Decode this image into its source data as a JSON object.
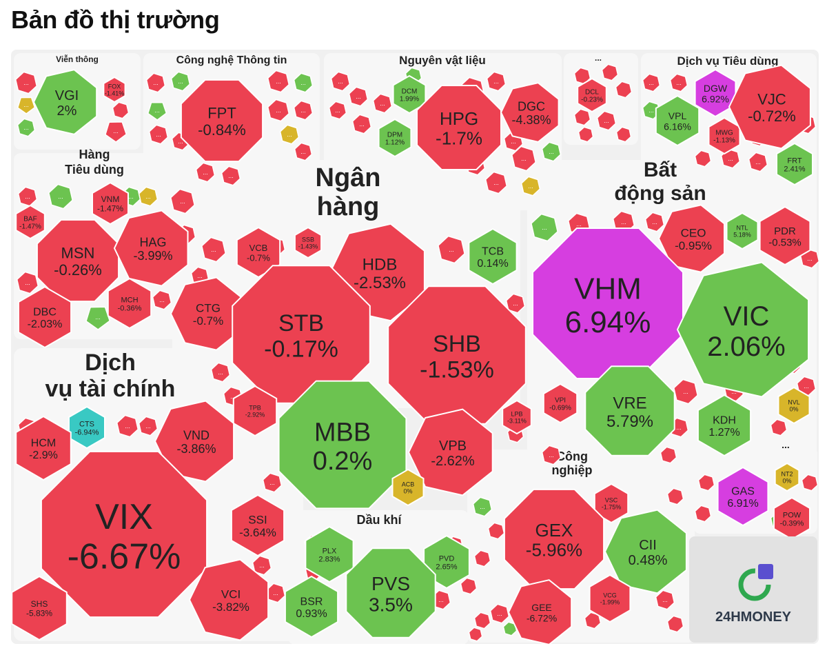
{
  "header": {
    "title": "Bản đồ thị trường"
  },
  "brand": {
    "name": "24HMONEY"
  },
  "colors": {
    "up": "#6cc350",
    "down": "#ec4151",
    "flat": "#d8b52a",
    "ceiling": "#d63ee0",
    "floor": "#39c9c3",
    "border_up": "#4f9a38",
    "border_down": "#c42c3b",
    "panel_bg": "#f0f0f0"
  },
  "chart_data": {
    "type": "treemap",
    "title": "Bản đồ thị trường",
    "unit": "%",
    "sectors": [
      {
        "name": "Viễn thông",
        "stocks": [
          {
            "ticker": "VGI",
            "change": 2
          },
          {
            "ticker": "FOX",
            "change": -1.41
          }
        ]
      },
      {
        "name": "Công nghệ Thông tin",
        "stocks": [
          {
            "ticker": "FPT",
            "change": -0.84
          }
        ]
      },
      {
        "name": "Nguyên vật liệu",
        "stocks": [
          {
            "ticker": "DCM",
            "change": 1.99
          },
          {
            "ticker": "DPM",
            "change": 1.12
          },
          {
            "ticker": "HPG",
            "change": -1.7
          },
          {
            "ticker": "DGC",
            "change": -4.38
          }
        ]
      },
      {
        "name": "...",
        "stocks": [
          {
            "ticker": "DCL",
            "change": -0.23
          }
        ]
      },
      {
        "name": "Dịch vụ Tiêu dùng",
        "stocks": [
          {
            "ticker": "DGW",
            "change": 6.92
          },
          {
            "ticker": "VPL",
            "change": 6.16
          },
          {
            "ticker": "MWG",
            "change": -1.13
          },
          {
            "ticker": "VJC",
            "change": -0.72
          },
          {
            "ticker": "FRT",
            "change": 2.41
          }
        ]
      },
      {
        "name": "Hàng Tiêu dùng",
        "stocks": [
          {
            "ticker": "VNM",
            "change": -1.47
          },
          {
            "ticker": "BAF",
            "change": -1.47
          },
          {
            "ticker": "MSN",
            "change": -0.26
          },
          {
            "ticker": "HAG",
            "change": -3.99
          },
          {
            "ticker": "DBC",
            "change": -2.03
          },
          {
            "ticker": "MCH",
            "change": -0.36
          }
        ]
      },
      {
        "name": "Ngân hàng",
        "stocks": [
          {
            "ticker": "VCB",
            "change": -0.7
          },
          {
            "ticker": "SSB",
            "change": -1.43
          },
          {
            "ticker": "HDB",
            "change": -2.53
          },
          {
            "ticker": "TCB",
            "change": 0.14
          },
          {
            "ticker": "CTG",
            "change": -0.7
          },
          {
            "ticker": "STB",
            "change": -0.17
          },
          {
            "ticker": "SHB",
            "change": -1.53
          },
          {
            "ticker": "TPB",
            "change": -2.92
          },
          {
            "ticker": "MBB",
            "change": 0.2
          },
          {
            "ticker": "VPB",
            "change": -2.62
          },
          {
            "ticker": "LPB",
            "change": -3.11
          },
          {
            "ticker": "ACB",
            "change": 0
          }
        ]
      },
      {
        "name": "Bất động sản",
        "stocks": [
          {
            "ticker": "CEO",
            "change": -0.95
          },
          {
            "ticker": "NTL",
            "change": 5.18
          },
          {
            "ticker": "PDR",
            "change": -0.53
          },
          {
            "ticker": "VHM",
            "change": 6.94
          },
          {
            "ticker": "VIC",
            "change": 2.06
          },
          {
            "ticker": "VPI",
            "change": -0.69
          },
          {
            "ticker": "VRE",
            "change": 5.79
          },
          {
            "ticker": "KDH",
            "change": 1.27
          },
          {
            "ticker": "NVL",
            "change": 0
          }
        ]
      },
      {
        "name": "Dịch vụ tài chính",
        "stocks": [
          {
            "ticker": "CTS",
            "change": -6.94
          },
          {
            "ticker": "HCM",
            "change": -2.9
          },
          {
            "ticker": "VND",
            "change": -3.86
          },
          {
            "ticker": "VIX",
            "change": -6.67
          },
          {
            "ticker": "SSI",
            "change": -3.64
          },
          {
            "ticker": "VCI",
            "change": -3.82
          },
          {
            "ticker": "SHS",
            "change": -5.83
          }
        ]
      },
      {
        "name": "Dầu khí",
        "stocks": [
          {
            "ticker": "PLX",
            "change": 2.83
          },
          {
            "ticker": "PVD",
            "change": 2.65
          },
          {
            "ticker": "PVS",
            "change": 3.5
          },
          {
            "ticker": "BSR",
            "change": 0.93
          }
        ]
      },
      {
        "name": "Công nghiệp",
        "stocks": [
          {
            "ticker": "VSC",
            "change": -1.75
          },
          {
            "ticker": "GEX",
            "change": -5.96
          },
          {
            "ticker": "CII",
            "change": 0.48
          },
          {
            "ticker": "VCG",
            "change": -1.99
          },
          {
            "ticker": "GEE",
            "change": -6.72
          }
        ]
      },
      {
        "name": "...",
        "stocks": [
          {
            "ticker": "GAS",
            "change": 6.91
          },
          {
            "ticker": "NT2",
            "change": 0
          },
          {
            "ticker": "POW",
            "change": -0.39
          }
        ]
      }
    ],
    "tile_texts": {
      "VGI": [
        "VGI",
        "2%"
      ],
      "FOX": [
        "FOX",
        "-1.41%"
      ],
      "FPT": [
        "FPT",
        "-0.84%"
      ],
      "DCM": [
        "DCM",
        "1.99%"
      ],
      "DPM": [
        "DPM",
        "1.12%"
      ],
      "HPG": [
        "HPG",
        "-1.7%"
      ],
      "DGC": [
        "DGC",
        "-4.38%"
      ],
      "DCL": [
        "DCL",
        "-0.23%"
      ],
      "DGW": [
        "DGW",
        "6.92%"
      ],
      "VPL": [
        "VPL",
        "6.16%"
      ],
      "MWG": [
        "MWG",
        "-1.13%"
      ],
      "VJC": [
        "VJC",
        "-0.72%"
      ],
      "FRT": [
        "FRT",
        "2.41%"
      ],
      "VNM": [
        "VNM",
        "-1.47%"
      ],
      "BAF": [
        "BAF",
        "-1.47%"
      ],
      "MSN": [
        "MSN",
        "-0.26%"
      ],
      "HAG": [
        "HAG",
        "-3.99%"
      ],
      "DBC": [
        "DBC",
        "-2.03%"
      ],
      "MCH": [
        "MCH",
        "-0.36%"
      ],
      "VCB": [
        "VCB",
        "-0.7%"
      ],
      "SSB": [
        "SSB",
        "-1.43%"
      ],
      "HDB": [
        "HDB",
        "-2.53%"
      ],
      "TCB": [
        "TCB",
        "0.14%"
      ],
      "CTG": [
        "CTG",
        "-0.7%"
      ],
      "STB": [
        "STB",
        "-0.17%"
      ],
      "SHB": [
        "SHB",
        "-1.53%"
      ],
      "TPB": [
        "TPB",
        "-2.92%"
      ],
      "MBB": [
        "MBB",
        "0.2%"
      ],
      "VPB": [
        "VPB",
        "-2.62%"
      ],
      "LPB": [
        "LPB",
        "-3.11%"
      ],
      "ACB": [
        "ACB",
        "0%"
      ],
      "CEO": [
        "CEO",
        "-0.95%"
      ],
      "NTL": [
        "NTL",
        "5.18%"
      ],
      "PDR": [
        "PDR",
        "-0.53%"
      ],
      "VHM": [
        "VHM",
        "6.94%"
      ],
      "VIC": [
        "VIC",
        "2.06%"
      ],
      "VPI": [
        "VPI",
        "-0.69%"
      ],
      "VRE": [
        "VRE",
        "5.79%"
      ],
      "KDH": [
        "KDH",
        "1.27%"
      ],
      "NVL": [
        "NVL",
        "0%"
      ],
      "CTS": [
        "CTS",
        "-6.94%"
      ],
      "HCM": [
        "HCM",
        "-2.9%"
      ],
      "VND": [
        "VND",
        "-3.86%"
      ],
      "VIX": [
        "VIX",
        "-6.67%"
      ],
      "SSI": [
        "SSI",
        "-3.64%"
      ],
      "VCI": [
        "VCI",
        "-3.82%"
      ],
      "SHS": [
        "SHS",
        "-5.83%"
      ],
      "PLX": [
        "PLX",
        "2.83%"
      ],
      "PVD": [
        "PVD",
        "2.65%"
      ],
      "PVS": [
        "PVS",
        "3.5%"
      ],
      "BSR": [
        "BSR",
        "0.93%"
      ],
      "VSC": [
        "VSC",
        "-1.75%"
      ],
      "GEX": [
        "GEX",
        "-5.96%"
      ],
      "CII": [
        "CII",
        "0.48%"
      ],
      "VCG": [
        "VCG",
        "-1.99%"
      ],
      "GEE": [
        "GEE",
        "-6.72%"
      ],
      "GAS": [
        "GAS",
        "6.91%"
      ],
      "NT2": [
        "NT2",
        "0%"
      ],
      "POW": [
        "POW",
        "-0.39%"
      ]
    },
    "section_label_lines": {
      "Viễn thông": [
        "Viễn thông"
      ],
      "Công nghệ Thông tin": [
        "Công nghệ Thông tin"
      ],
      "Nguyên vật liệu": [
        "Nguyên vật liệu"
      ],
      "Dịch vụ Tiêu dùng": [
        "Dịch vụ Tiêu dùng"
      ],
      "Hàng Tiêu dùng": [
        "Hàng",
        "Tiêu dùng"
      ],
      "Ngân hàng": [
        "Ngân",
        "hàng"
      ],
      "Bất động sản": [
        "Bất",
        "động sản"
      ],
      "Dịch vụ tài chính": [
        "Dịch",
        "vụ tài chính"
      ],
      "Dầu khí": [
        "Dầu khí"
      ],
      "Công nghiệp": [
        "Công",
        "nghiệp"
      ],
      "...": [
        "..."
      ]
    },
    "small_tile_text": "..."
  }
}
